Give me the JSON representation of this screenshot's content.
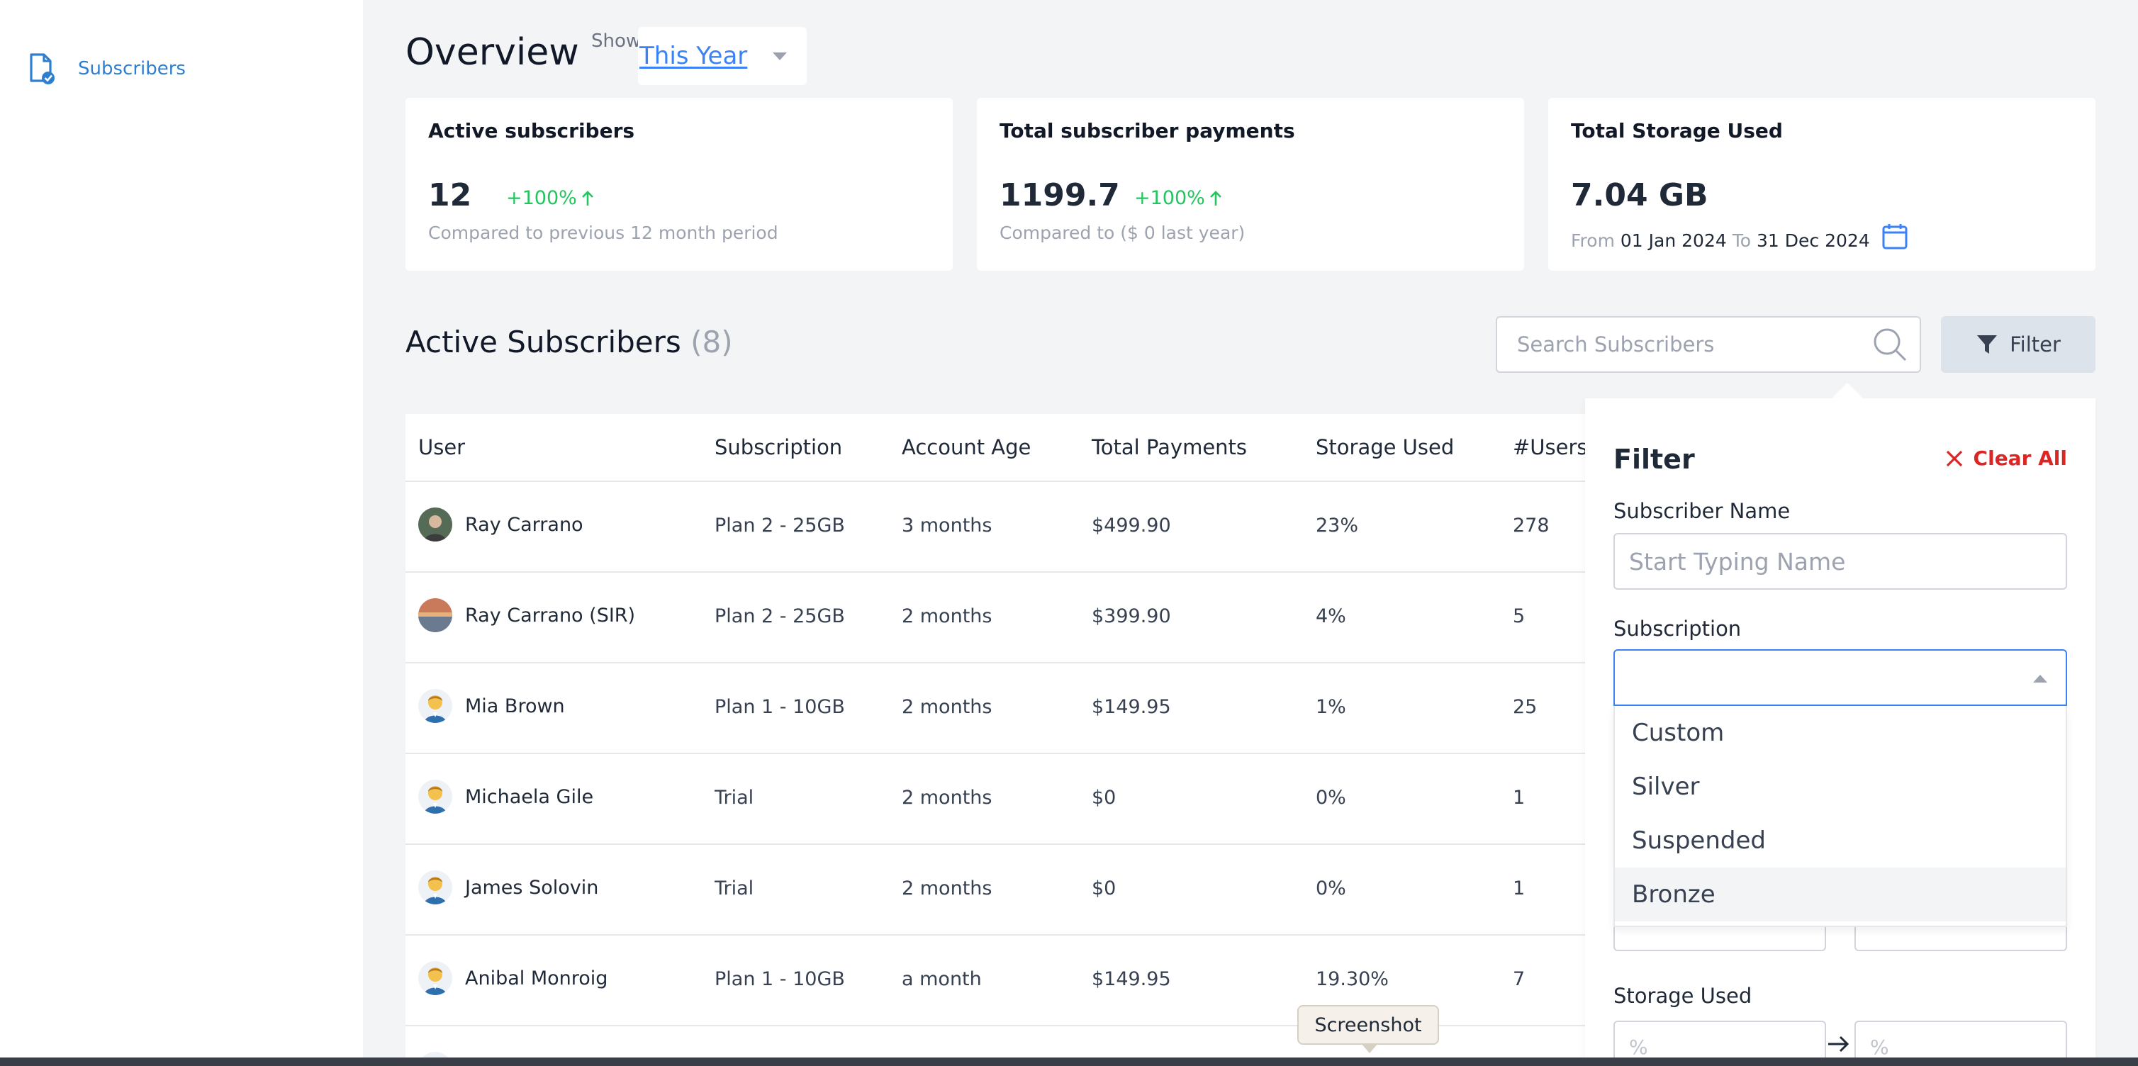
{
  "sidebar": {
    "items": [
      {
        "label": "Subscribers",
        "icon": "document-check-icon"
      }
    ]
  },
  "header": {
    "title": "Overview",
    "show_label": "Show:",
    "period": "This Year"
  },
  "cards": [
    {
      "title": "Active subscribers",
      "value": "12",
      "delta": "+100%",
      "note": "Compared to previous 12 month period"
    },
    {
      "title": "Total subscriber payments",
      "value": "1199.7",
      "delta": "+100%",
      "note": "Compared to ($ 0 last year)"
    },
    {
      "title": "Total Storage Used",
      "value": "7.04 GB",
      "from_label": "From",
      "from": "01 Jan 2024",
      "to_label": "To",
      "to": "31 Dec 2024"
    }
  ],
  "subscribers": {
    "title": "Active Subscribers",
    "count": "(8)",
    "search_placeholder": "Search Subscribers",
    "filter_label": "Filter"
  },
  "table": {
    "columns": [
      "User",
      "Subscription",
      "Account Age",
      "Total Payments",
      "Storage Used",
      "#Users"
    ],
    "rows": [
      {
        "user": "Ray Carrano",
        "subscription": "Plan 2 - 25GB",
        "age": "3 months",
        "payments": "$499.90",
        "storage": "23%",
        "users": "278"
      },
      {
        "user": "Ray Carrano (SIR)",
        "subscription": "Plan 2 - 25GB",
        "age": "2 months",
        "payments": "$399.90",
        "storage": "4%",
        "users": "5"
      },
      {
        "user": "Mia Brown",
        "subscription": "Plan 1 - 10GB",
        "age": "2 months",
        "payments": "$149.95",
        "storage": "1%",
        "users": "25"
      },
      {
        "user": "Michaela Gile",
        "subscription": "Trial",
        "age": "2 months",
        "payments": "$0",
        "storage": "0%",
        "users": "1"
      },
      {
        "user": "James Solovin",
        "subscription": "Trial",
        "age": "2 months",
        "payments": "$0",
        "storage": "0%",
        "users": "1"
      },
      {
        "user": "Anibal Monroig",
        "subscription": "Plan 1 - 10GB",
        "age": "a month",
        "payments": "$149.95",
        "storage": "19.30%",
        "users": "7"
      }
    ]
  },
  "filter_panel": {
    "title": "Filter",
    "clear_all": "Clear All",
    "name_label": "Subscriber Name",
    "name_placeholder": "Start Typing Name",
    "subscription_label": "Subscription",
    "subscription_options": [
      "Custom",
      "Silver",
      "Suspended",
      "Bronze"
    ],
    "storage_label": "Storage Used",
    "percent_placeholder": "%"
  },
  "tooltip": "Screenshot",
  "colors": {
    "accent": "#3b82f6",
    "positive": "#22c55e",
    "danger": "#dc2626"
  }
}
